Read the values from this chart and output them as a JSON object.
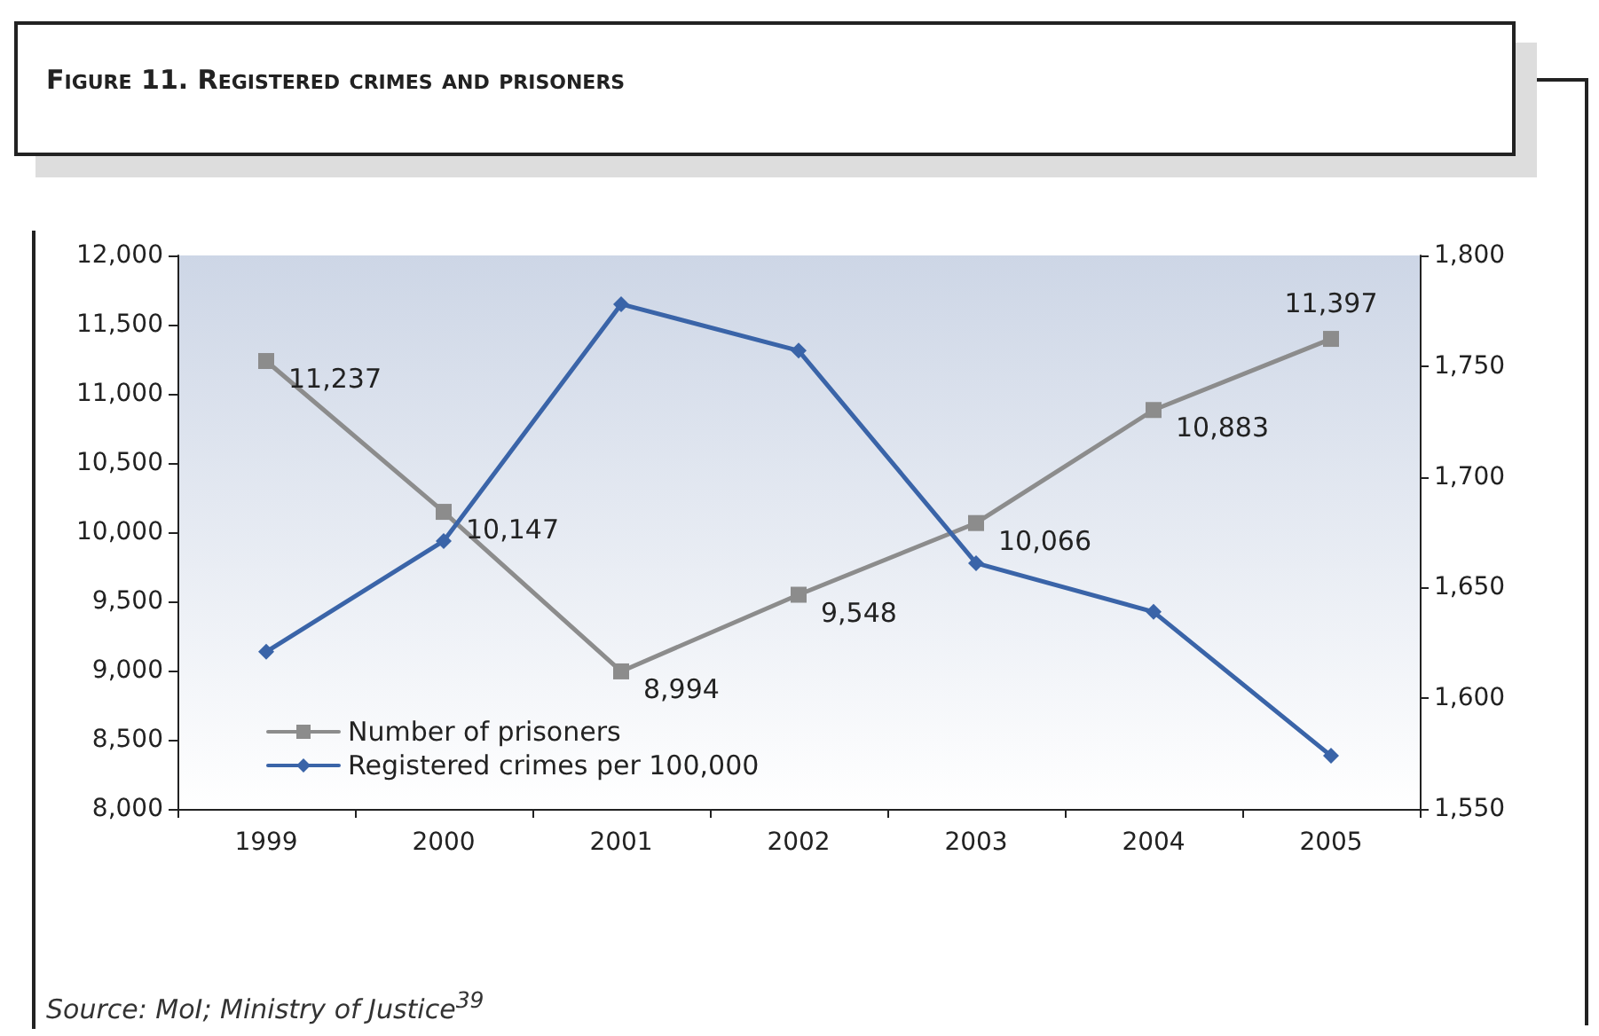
{
  "chart_data": {
    "type": "line",
    "title": "Figure 11. Registered crimes and prisoners",
    "categories": [
      "1999",
      "2000",
      "2001",
      "2002",
      "2003",
      "2004",
      "2005"
    ],
    "series": [
      {
        "name": "Number of prisoners",
        "color": "#8c8c8c",
        "marker": "square",
        "values": [
          11237,
          10147,
          8994,
          9548,
          10066,
          10883,
          11397
        ],
        "value_labels": [
          "11,237",
          "10,147",
          "8,994",
          "9,548",
          "10,066",
          "10,883",
          "11,397"
        ]
      },
      {
        "name": "Registered crimes per 100,000",
        "color": "#3a64a8",
        "marker": "diamond",
        "axis": "y2",
        "values": [
          1621,
          1671,
          1778,
          1757,
          1661,
          1639,
          1574
        ]
      }
    ],
    "ylim": [
      8000,
      12000
    ],
    "yticks": [
      {
        "value": 8000,
        "label": "8,000"
      },
      {
        "value": 8500,
        "label": "8,500"
      },
      {
        "value": 9000,
        "label": "9,000"
      },
      {
        "value": 9500,
        "label": "9,500"
      },
      {
        "value": 10000,
        "label": "10,000"
      },
      {
        "value": 10500,
        "label": "10,500"
      },
      {
        "value": 11000,
        "label": "11,000"
      },
      {
        "value": 11500,
        "label": "11,500"
      },
      {
        "value": 12000,
        "label": "12,000"
      }
    ],
    "y2lim": [
      1550,
      1800
    ],
    "y2ticks": [
      {
        "value": 1550,
        "label": "1,550"
      },
      {
        "value": 1600,
        "label": "1,600"
      },
      {
        "value": 1650,
        "label": "1,650"
      },
      {
        "value": 1700,
        "label": "1,700"
      },
      {
        "value": 1750,
        "label": "1,750"
      },
      {
        "value": 1800,
        "label": "1,800"
      }
    ],
    "grid": false,
    "legend": "bottom left",
    "line_style": "solid",
    "annotations": [
      "Source: MoI; Ministry of Justice$^{39}$"
    ]
  }
}
